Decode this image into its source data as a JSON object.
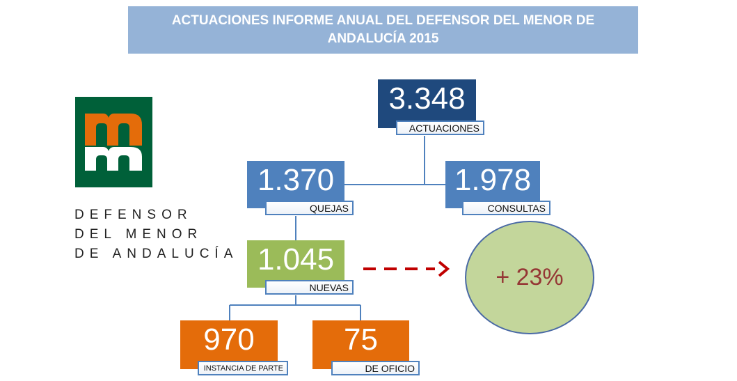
{
  "title": {
    "line1": "ACTUACIONES INFORME ANUAL DEL DEFENSOR DEL MENOR DE",
    "line2": "ANDALUCÍA 2015"
  },
  "logo": {
    "name_lines": [
      "DEFENSOR",
      "DEL MENOR",
      "DE ANDALUCÍA"
    ],
    "colors": {
      "background": "#006039",
      "top": "#e46c0a",
      "bottom": "#ffffff"
    }
  },
  "nodes": {
    "actuaciones": {
      "value": "3.348",
      "label": "ACTUACIONES",
      "color": "#1f497d"
    },
    "quejas": {
      "value": "1.370",
      "label": "QUEJAS",
      "color": "#4f81bd"
    },
    "consultas": {
      "value": "1.978",
      "label": "CONSULTAS",
      "color": "#4f81bd"
    },
    "nuevas": {
      "value": "1.045",
      "label": "NUEVAS",
      "color": "#9bbb59"
    },
    "instancia": {
      "value": "970",
      "label": "INSTANCIA DE PARTE",
      "color": "#e46c0a"
    },
    "oficio": {
      "value": "75",
      "label": "DE OFICIO",
      "color": "#e46c0a"
    }
  },
  "growth": {
    "text": "+ 23%",
    "fill": "#c3d69b",
    "text_color": "#953735"
  },
  "colors": {
    "arrow": "#c00000",
    "connector": "#4f81bd"
  }
}
